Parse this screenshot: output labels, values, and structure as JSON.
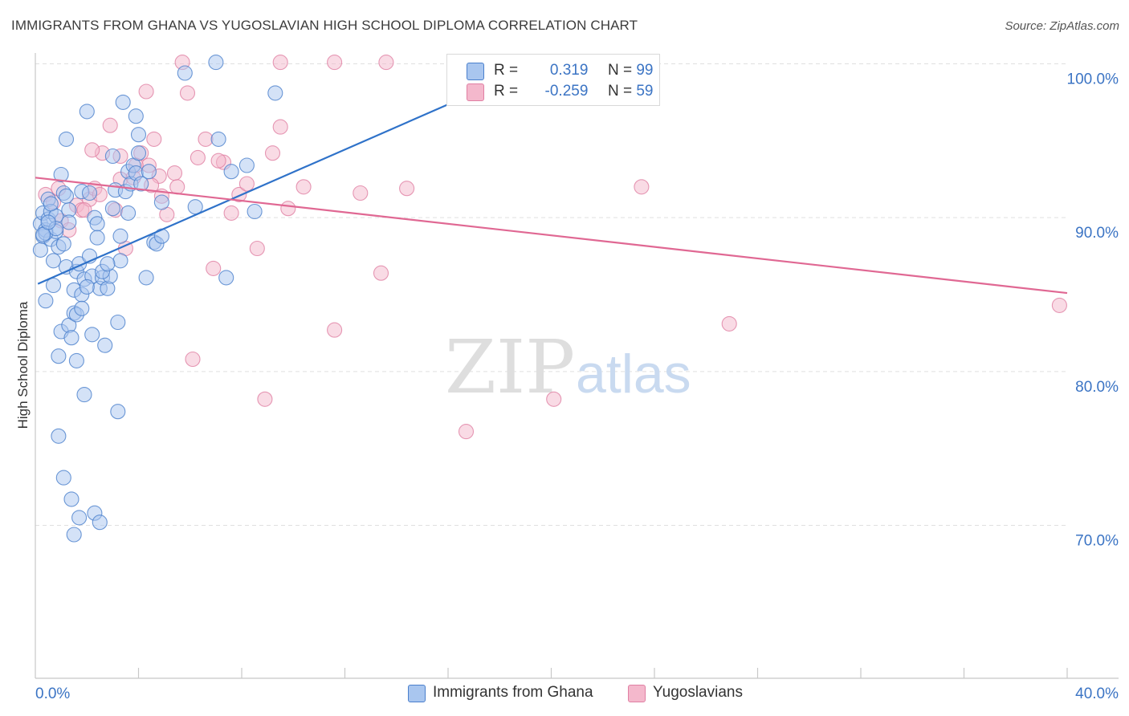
{
  "header": {
    "title": "IMMIGRANTS FROM GHANA VS YUGOSLAVIAN HIGH SCHOOL DIPLOMA CORRELATION CHART",
    "source": "Source: ZipAtlas.com"
  },
  "watermark": {
    "zip": "ZIP",
    "atlas": "atlas"
  },
  "legend_top": {
    "rows": [
      {
        "r_label": "R =",
        "r_value": "0.319",
        "n_label": "N =",
        "n_value": "99"
      },
      {
        "r_label": "R =",
        "r_value": "-0.259",
        "n_label": "N =",
        "n_value": "59"
      }
    ]
  },
  "legend_bottom": {
    "items": [
      {
        "label": "Immigrants from Ghana"
      },
      {
        "label": "Yugoslavians"
      }
    ]
  },
  "colors": {
    "blue_fill": "#a9c6ef",
    "blue_stroke": "#4a7fcc",
    "blue_line": "#2f72c9",
    "pink_fill": "#f4b8cc",
    "pink_stroke": "#e07fa3",
    "pink_line": "#e06893",
    "tick_label": "#3b74c4",
    "grid": "#e0e0e0"
  },
  "chart_data": {
    "type": "scatter",
    "title": "IMMIGRANTS FROM GHANA VS YUGOSLAVIAN HIGH SCHOOL DIPLOMA CORRELATION CHART",
    "xlabel": "",
    "ylabel": "High School Diploma",
    "xlim": [
      0,
      40
    ],
    "ylim": [
      60,
      101.5
    ],
    "x_tick_labels": [
      "0.0%",
      "40.0%"
    ],
    "y_ticks": [
      70,
      80,
      90,
      100
    ],
    "y_tick_labels": [
      "70.0%",
      "80.0%",
      "90.0%",
      "100.0%"
    ],
    "grid": true,
    "series": [
      {
        "name": "Immigrants from Ghana",
        "r": 0.319,
        "n": 99,
        "trend": {
          "x": [
            0.1,
            19.6
          ],
          "y": [
            85.7,
            100.0
          ]
        },
        "points": [
          [
            0.2,
            87.9
          ],
          [
            0.2,
            89.6
          ],
          [
            0.3,
            88.8
          ],
          [
            0.3,
            90.3
          ],
          [
            0.4,
            84.6
          ],
          [
            0.4,
            89.2
          ],
          [
            0.5,
            89.9
          ],
          [
            0.5,
            91.2
          ],
          [
            0.6,
            90.4
          ],
          [
            0.6,
            88.6
          ],
          [
            0.7,
            87.2
          ],
          [
            0.7,
            85.6
          ],
          [
            0.8,
            89.1
          ],
          [
            0.8,
            90.1
          ],
          [
            0.9,
            88.1
          ],
          [
            0.9,
            81.0
          ],
          [
            1.0,
            82.6
          ],
          [
            1.0,
            92.8
          ],
          [
            1.1,
            91.6
          ],
          [
            1.1,
            88.3
          ],
          [
            1.2,
            86.8
          ],
          [
            1.2,
            95.1
          ],
          [
            1.3,
            90.5
          ],
          [
            1.3,
            83.0
          ],
          [
            1.4,
            82.2
          ],
          [
            1.5,
            83.8
          ],
          [
            1.5,
            85.3
          ],
          [
            1.6,
            83.7
          ],
          [
            1.6,
            86.5
          ],
          [
            1.6,
            80.7
          ],
          [
            1.7,
            87.0
          ],
          [
            1.8,
            85.0
          ],
          [
            1.8,
            91.7
          ],
          [
            1.9,
            78.5
          ],
          [
            1.9,
            86.0
          ],
          [
            2.0,
            96.9
          ],
          [
            2.1,
            91.6
          ],
          [
            2.1,
            87.5
          ],
          [
            2.2,
            82.4
          ],
          [
            2.2,
            86.2
          ],
          [
            2.3,
            90.0
          ],
          [
            2.4,
            89.6
          ],
          [
            2.5,
            85.4
          ],
          [
            2.6,
            86.1
          ],
          [
            2.7,
            81.7
          ],
          [
            2.8,
            85.4
          ],
          [
            2.9,
            86.2
          ],
          [
            3.0,
            90.6
          ],
          [
            3.0,
            94.0
          ],
          [
            3.1,
            91.8
          ],
          [
            3.2,
            83.2
          ],
          [
            3.3,
            87.2
          ],
          [
            3.4,
            97.5
          ],
          [
            3.5,
            91.7
          ],
          [
            3.6,
            93.0
          ],
          [
            3.7,
            92.2
          ],
          [
            3.8,
            93.4
          ],
          [
            3.9,
            92.9
          ],
          [
            4.0,
            95.4
          ],
          [
            4.0,
            94.2
          ],
          [
            4.1,
            92.2
          ],
          [
            4.3,
            86.1
          ],
          [
            4.6,
            88.4
          ],
          [
            4.7,
            88.3
          ],
          [
            4.9,
            91.0
          ],
          [
            4.9,
            88.8
          ],
          [
            5.8,
            99.4
          ],
          [
            6.2,
            90.7
          ],
          [
            7.0,
            100.1
          ],
          [
            7.1,
            95.1
          ],
          [
            7.4,
            86.1
          ],
          [
            7.6,
            93.0
          ],
          [
            8.2,
            93.4
          ],
          [
            8.5,
            90.4
          ],
          [
            9.3,
            98.1
          ],
          [
            0.9,
            75.8
          ],
          [
            1.1,
            73.1
          ],
          [
            1.4,
            71.7
          ],
          [
            1.7,
            70.5
          ],
          [
            1.5,
            69.4
          ],
          [
            2.3,
            70.8
          ],
          [
            2.5,
            70.2
          ],
          [
            3.2,
            77.4
          ],
          [
            1.8,
            84.1
          ],
          [
            2.6,
            86.5
          ],
          [
            3.3,
            88.8
          ],
          [
            0.6,
            90.9
          ],
          [
            0.4,
            89.0
          ],
          [
            1.3,
            89.7
          ],
          [
            2.0,
            85.5
          ],
          [
            2.8,
            87.0
          ],
          [
            3.6,
            90.3
          ],
          [
            0.3,
            88.9
          ],
          [
            0.8,
            89.3
          ],
          [
            1.2,
            91.4
          ],
          [
            2.4,
            88.7
          ],
          [
            3.9,
            96.6
          ],
          [
            0.5,
            89.7
          ],
          [
            4.4,
            93.0
          ]
        ]
      },
      {
        "name": "Yugoslavians",
        "r": -0.259,
        "n": 59,
        "trend": {
          "x": [
            0.0,
            40.0
          ],
          "y": [
            92.6,
            85.1
          ]
        },
        "points": [
          [
            0.4,
            91.5
          ],
          [
            0.7,
            91.0
          ],
          [
            1.0,
            89.8
          ],
          [
            1.3,
            89.2
          ],
          [
            1.6,
            90.8
          ],
          [
            1.8,
            90.5
          ],
          [
            2.1,
            91.2
          ],
          [
            2.3,
            91.9
          ],
          [
            2.6,
            94.2
          ],
          [
            2.9,
            96.0
          ],
          [
            3.1,
            90.5
          ],
          [
            3.3,
            92.5
          ],
          [
            3.5,
            88.0
          ],
          [
            3.8,
            92.6
          ],
          [
            4.1,
            94.2
          ],
          [
            4.4,
            93.4
          ],
          [
            4.6,
            95.1
          ],
          [
            4.8,
            92.7
          ],
          [
            5.1,
            90.2
          ],
          [
            5.4,
            92.9
          ],
          [
            5.7,
            100.1
          ],
          [
            6.1,
            80.8
          ],
          [
            6.3,
            93.9
          ],
          [
            6.6,
            95.1
          ],
          [
            6.9,
            86.7
          ],
          [
            7.3,
            93.6
          ],
          [
            7.6,
            90.3
          ],
          [
            7.9,
            91.5
          ],
          [
            8.2,
            92.2
          ],
          [
            8.6,
            88.0
          ],
          [
            8.9,
            78.2
          ],
          [
            9.2,
            94.2
          ],
          [
            9.5,
            95.9
          ],
          [
            9.8,
            90.6
          ],
          [
            10.4,
            92.0
          ],
          [
            11.6,
            82.7
          ],
          [
            12.6,
            91.6
          ],
          [
            13.4,
            86.4
          ],
          [
            14.4,
            91.9
          ],
          [
            16.7,
            76.1
          ],
          [
            20.1,
            78.2
          ],
          [
            23.5,
            92.0
          ],
          [
            26.9,
            83.1
          ],
          [
            39.7,
            84.3
          ],
          [
            5.9,
            98.1
          ],
          [
            4.3,
            98.2
          ],
          [
            9.5,
            100.1
          ],
          [
            11.6,
            100.1
          ],
          [
            13.6,
            100.1
          ],
          [
            2.5,
            91.5
          ],
          [
            3.9,
            93.4
          ],
          [
            1.9,
            90.5
          ],
          [
            0.9,
            91.9
          ],
          [
            5.5,
            92.0
          ],
          [
            4.9,
            91.4
          ],
          [
            7.1,
            93.7
          ],
          [
            3.3,
            94.0
          ],
          [
            2.2,
            94.4
          ],
          [
            4.5,
            92.1
          ]
        ]
      }
    ]
  }
}
